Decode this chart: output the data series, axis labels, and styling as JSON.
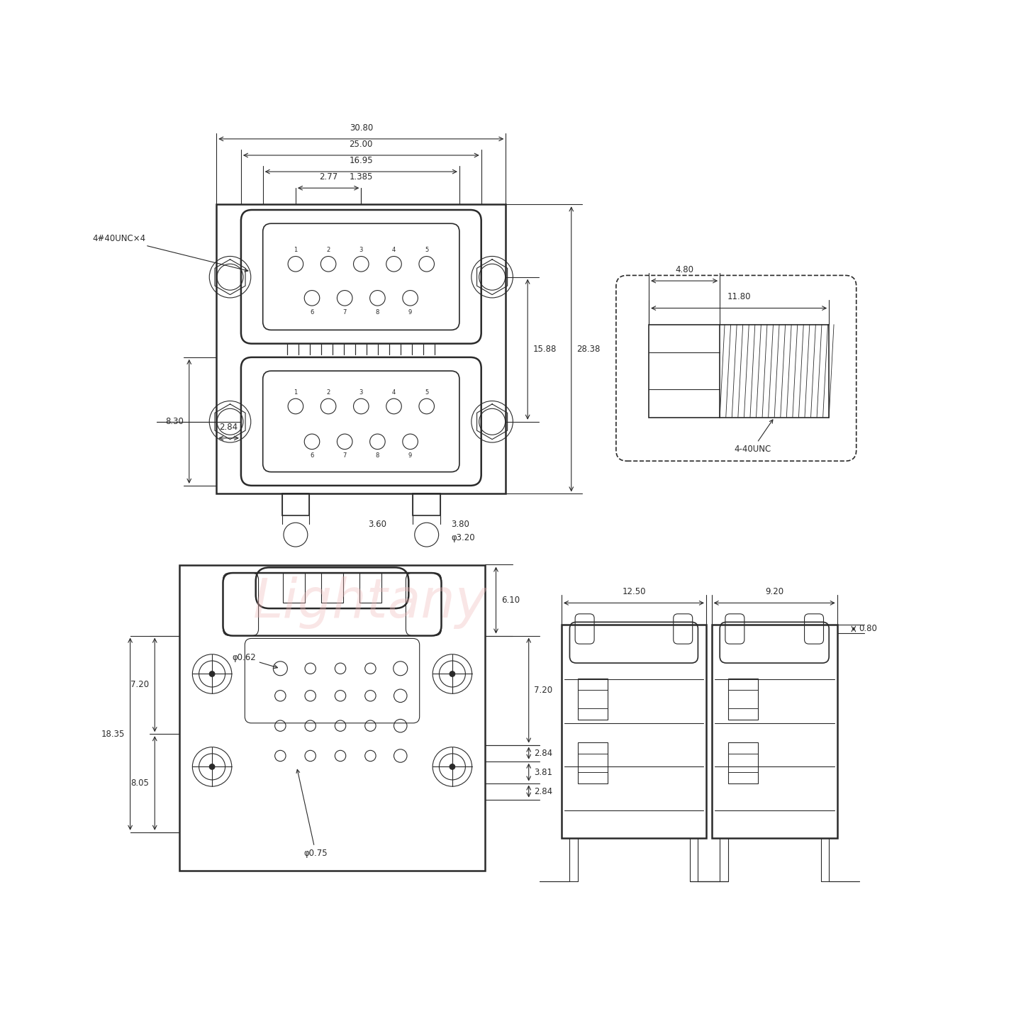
{
  "bg_color": "#ffffff",
  "line_color": "#2a2a2a",
  "dim_color": "#2a2a2a",
  "watermark_color": "#f0b8b8",
  "watermark_text": "Lightany",
  "font_size_dim": 8.5,
  "dims": {
    "top_width": "30.80",
    "mid_width": "25.00",
    "inner_width": "16.95",
    "pitch1": "2.77",
    "pitch2": "1.385",
    "height_between": "15.88",
    "total_height": "28.38",
    "bracket_w": "2.84",
    "bracket_h": "8.30",
    "footer1": "3.60",
    "footer2": "3.80",
    "footer3": "φ3.20",
    "screw_label": "4#40UNC×4",
    "screw_total": "11.80",
    "screw_body": "4.80",
    "screw_note": "4-40UNC",
    "bot_dim_top": "6.10",
    "bot_dim_upper": "7.20",
    "bot_left_upper": "7.20",
    "bot_dim_total": "18.35",
    "bot_dim_lower": "8.05",
    "bot_dim_a": "2.84",
    "bot_dim_b": "3.81",
    "bot_dim_c": "2.84",
    "bot_hole1": "φ0.62",
    "bot_hole2": "φ0.75",
    "side_w1": "12.50",
    "side_w2": "9.20",
    "side_dim": "0.80"
  }
}
